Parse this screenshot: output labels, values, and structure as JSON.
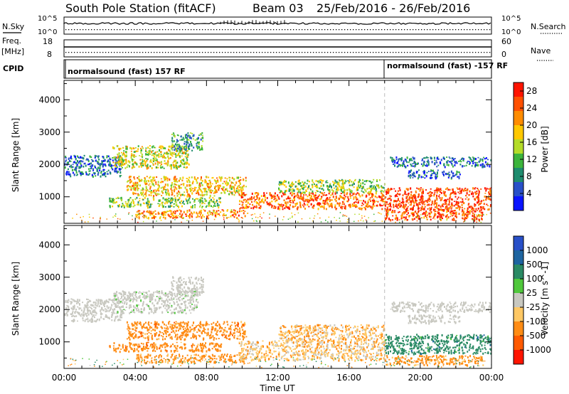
{
  "header": {
    "station": "South Pole Station (fitACF)",
    "beam": "Beam 03",
    "dates": "25/Feb/2016 - 26/Feb/2016"
  },
  "top_panels": {
    "nsky_label": "N.Sky",
    "nsky_ticks": [
      "10^5",
      "10^0"
    ],
    "nsearch_label": "N.Search",
    "nsearch_ticks": [
      "10^5",
      "10^0"
    ],
    "freq_label_line1": "Freq.",
    "freq_label_line2": "[MHz]",
    "freq_ticks": [
      "18",
      "8"
    ],
    "nave_label": "Nave",
    "nave_ticks": [
      "60",
      "0"
    ],
    "cpid_label": "CPID",
    "cpid_segments": [
      {
        "start_hour": 0,
        "label": "normalsound (fast) 157 RF"
      },
      {
        "start_hour": 18,
        "label": "normalsound (fast) -157 RF"
      }
    ]
  },
  "chart_data": [
    {
      "type": "heatmap",
      "title": "Power",
      "xlabel": "Time UT",
      "ylabel": "Slant Range [km]",
      "x_range_hours": [
        0,
        24
      ],
      "x_ticks": [
        "00:00",
        "04:00",
        "08:00",
        "12:00",
        "16:00",
        "20:00",
        "00:00"
      ],
      "y_range_km": [
        180,
        4600
      ],
      "y_ticks": [
        1000,
        2000,
        3000,
        4000
      ],
      "colorbar": {
        "label": "Power [dB]",
        "ticks": [
          "4",
          "8",
          "12",
          "16",
          "20",
          "24",
          "28"
        ],
        "range": [
          0,
          30
        ],
        "colors": [
          "#0a14ff",
          "#2850c8",
          "#1e8c6e",
          "#3cb43c",
          "#b4dc28",
          "#ffc800",
          "#ff8c00",
          "#ff5000",
          "#ff1400"
        ]
      },
      "echo_regions": [
        {
          "t0": 0.0,
          "t1": 3.2,
          "r0": 1650,
          "r1": 2300,
          "value": 6
        },
        {
          "t0": 2.7,
          "t1": 7.0,
          "r0": 1900,
          "r1": 2600,
          "value": 16
        },
        {
          "t0": 6.0,
          "t1": 7.8,
          "r0": 2450,
          "r1": 3000,
          "value": 10
        },
        {
          "t0": 3.5,
          "t1": 10.2,
          "r0": 1050,
          "r1": 1650,
          "value": 19
        },
        {
          "t0": 2.5,
          "t1": 8.8,
          "r0": 700,
          "r1": 1000,
          "value": 14
        },
        {
          "t0": 4.0,
          "t1": 10.2,
          "r0": 370,
          "r1": 620,
          "value": 22
        },
        {
          "t0": 9.8,
          "t1": 18.0,
          "r0": 650,
          "r1": 1150,
          "value": 24
        },
        {
          "t0": 12.0,
          "t1": 18.0,
          "r0": 1150,
          "r1": 1550,
          "value": 14
        },
        {
          "t0": 18.0,
          "t1": 24.0,
          "r0": 600,
          "r1": 1300,
          "value": 26
        },
        {
          "t0": 18.0,
          "t1": 23.5,
          "r0": 300,
          "r1": 600,
          "value": 25
        },
        {
          "t0": 18.3,
          "t1": 24.0,
          "r0": 1950,
          "r1": 2250,
          "value": 6
        },
        {
          "t0": 19.3,
          "t1": 22.2,
          "r0": 1600,
          "r1": 1850,
          "value": 7
        }
      ]
    },
    {
      "type": "heatmap",
      "title": "Velocity",
      "xlabel": "Time UT",
      "ylabel": "Slant Range [km]",
      "x_range_hours": [
        0,
        24
      ],
      "x_ticks": [
        "00:00",
        "04:00",
        "08:00",
        "12:00",
        "16:00",
        "20:00",
        "00:00"
      ],
      "y_range_km": [
        180,
        4600
      ],
      "y_ticks": [
        1000,
        2000,
        3000,
        4000
      ],
      "colorbar": {
        "label": "Velocity [m s^-1]",
        "ticks": [
          "1000",
          "500",
          "100",
          "25",
          "-25",
          "-100",
          "-500",
          "-1000"
        ],
        "colors": [
          "#2850c8",
          "#1e64a0",
          "#2a8a64",
          "#50c83c",
          "#c8c8c0",
          "#ffc864",
          "#ff8c14",
          "#ff5a00",
          "#ff1400"
        ]
      },
      "echo_regions": [
        {
          "t0": 0.0,
          "t1": 3.2,
          "r0": 1650,
          "r1": 2350,
          "value": 0
        },
        {
          "t0": 2.7,
          "t1": 7.5,
          "r0": 1900,
          "r1": 2600,
          "value": 10
        },
        {
          "t0": 6.0,
          "t1": 7.8,
          "r0": 2450,
          "r1": 3050,
          "value": 0
        },
        {
          "t0": 3.5,
          "t1": 10.2,
          "r0": 1100,
          "r1": 1650,
          "value": -300
        },
        {
          "t0": 2.5,
          "t1": 8.8,
          "r0": 720,
          "r1": 1000,
          "value": -300
        },
        {
          "t0": 4.0,
          "t1": 10.2,
          "r0": 370,
          "r1": 640,
          "value": -200
        },
        {
          "t0": 9.8,
          "t1": 18.0,
          "r0": 450,
          "r1": 1050,
          "value": -60
        },
        {
          "t0": 12.0,
          "t1": 18.0,
          "r0": 1050,
          "r1": 1550,
          "value": -80
        },
        {
          "t0": 18.0,
          "t1": 24.0,
          "r0": 650,
          "r1": 1250,
          "value": 300
        },
        {
          "t0": 18.0,
          "t1": 23.5,
          "r0": 300,
          "r1": 600,
          "value": -200
        },
        {
          "t0": 18.3,
          "t1": 24.0,
          "r0": 1950,
          "r1": 2250,
          "value": 0
        },
        {
          "t0": 19.3,
          "t1": 22.2,
          "r0": 1600,
          "r1": 1850,
          "value": 0
        }
      ]
    }
  ]
}
